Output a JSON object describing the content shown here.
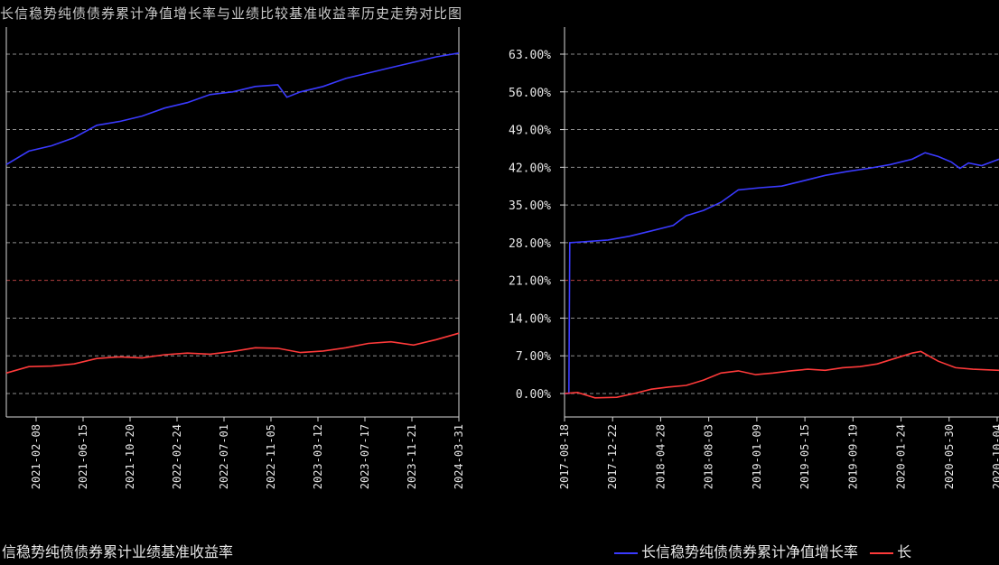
{
  "header": {
    "title_text": "长信稳势纯债债券累计净值增长率与业绩比较基准收益率历史走势对比图"
  },
  "colors": {
    "fund": "#3a3aff",
    "benchmark": "#ff3a3a",
    "grid": "#bdbdbd",
    "axis": "#d8d8d8",
    "bg": "#000000"
  },
  "legend": {
    "left_label": "信稳势纯债债券累计业绩基准收益率",
    "right_fund_label": "长信稳势纯债债券累计净值增长率",
    "right_bench_label": "长"
  },
  "chart_data": [
    {
      "type": "line",
      "panel": "left",
      "x_ticks": [
        "2021-02-08",
        "2021-06-15",
        "2021-10-20",
        "2022-02-24",
        "2022-07-01",
        "2022-11-05",
        "2023-03-12",
        "2023-07-17",
        "2023-11-21",
        "2024-03-31"
      ],
      "series": [
        {
          "name": "fund",
          "color": "#3a3aff",
          "points": [
            [
              0,
              42.5
            ],
            [
              0.05,
              45
            ],
            [
              0.1,
              46
            ],
            [
              0.15,
              47.5
            ],
            [
              0.2,
              49.8
            ],
            [
              0.25,
              50.5
            ],
            [
              0.3,
              51.5
            ],
            [
              0.35,
              53
            ],
            [
              0.4,
              54
            ],
            [
              0.45,
              55.5
            ],
            [
              0.5,
              56
            ],
            [
              0.55,
              57
            ],
            [
              0.6,
              57.3
            ],
            [
              0.62,
              55
            ],
            [
              0.65,
              56
            ],
            [
              0.7,
              57
            ],
            [
              0.75,
              58.5
            ],
            [
              0.8,
              59.5
            ],
            [
              0.85,
              60.5
            ],
            [
              0.9,
              61.5
            ],
            [
              0.95,
              62.5
            ],
            [
              1,
              63.2
            ]
          ]
        },
        {
          "name": "benchmark",
          "color": "#ff3a3a",
          "points": [
            [
              0,
              3.8
            ],
            [
              0.05,
              5
            ],
            [
              0.1,
              5.1
            ],
            [
              0.15,
              5.5
            ],
            [
              0.2,
              6.5
            ],
            [
              0.25,
              6.8
            ],
            [
              0.3,
              6.6
            ],
            [
              0.35,
              7.2
            ],
            [
              0.4,
              7.5
            ],
            [
              0.45,
              7.3
            ],
            [
              0.5,
              7.8
            ],
            [
              0.55,
              8.5
            ],
            [
              0.6,
              8.4
            ],
            [
              0.65,
              7.6
            ],
            [
              0.7,
              7.9
            ],
            [
              0.75,
              8.5
            ],
            [
              0.8,
              9.3
            ],
            [
              0.85,
              9.6
            ],
            [
              0.9,
              9.0
            ],
            [
              0.95,
              10
            ],
            [
              1,
              11.2
            ]
          ]
        }
      ]
    },
    {
      "type": "line",
      "panel": "right",
      "ylim": [
        0,
        63
      ],
      "y_ticks": [
        "63.00%",
        "56.00%",
        "49.00%",
        "42.00%",
        "35.00%",
        "28.00%",
        "21.00%",
        "14.00%",
        "7.00%",
        "0.00%"
      ],
      "x_ticks": [
        "2017-08-18",
        "2017-12-22",
        "2018-04-28",
        "2018-08-03",
        "2019-01-09",
        "2019-05-15",
        "2019-09-19",
        "2020-01-24",
        "2020-05-30",
        "2020-10-04"
      ],
      "series": [
        {
          "name": "长信稳势纯债债券累计净值增长率",
          "color": "#3a3aff",
          "points": [
            [
              0,
              0
            ],
            [
              0.01,
              0
            ],
            [
              0.012,
              28
            ],
            [
              0.05,
              28.2
            ],
            [
              0.1,
              28.5
            ],
            [
              0.15,
              29.2
            ],
            [
              0.2,
              30.2
            ],
            [
              0.25,
              31.2
            ],
            [
              0.28,
              33
            ],
            [
              0.32,
              34
            ],
            [
              0.36,
              35.5
            ],
            [
              0.4,
              37.8
            ],
            [
              0.45,
              38.2
            ],
            [
              0.5,
              38.5
            ],
            [
              0.55,
              39.5
            ],
            [
              0.6,
              40.5
            ],
            [
              0.65,
              41.2
            ],
            [
              0.7,
              41.8
            ],
            [
              0.75,
              42.5
            ],
            [
              0.8,
              43.5
            ],
            [
              0.83,
              44.7
            ],
            [
              0.86,
              44
            ],
            [
              0.89,
              43
            ],
            [
              0.91,
              41.8
            ],
            [
              0.93,
              42.8
            ],
            [
              0.96,
              42.3
            ],
            [
              1,
              43.5
            ]
          ]
        },
        {
          "name": "benchmark",
          "color": "#ff3a3a",
          "points": [
            [
              0,
              0
            ],
            [
              0.03,
              0.2
            ],
            [
              0.07,
              -0.8
            ],
            [
              0.12,
              -0.7
            ],
            [
              0.16,
              0
            ],
            [
              0.2,
              0.8
            ],
            [
              0.24,
              1.2
            ],
            [
              0.28,
              1.5
            ],
            [
              0.32,
              2.5
            ],
            [
              0.36,
              3.8
            ],
            [
              0.4,
              4.2
            ],
            [
              0.44,
              3.5
            ],
            [
              0.48,
              3.8
            ],
            [
              0.52,
              4.2
            ],
            [
              0.56,
              4.5
            ],
            [
              0.6,
              4.3
            ],
            [
              0.64,
              4.8
            ],
            [
              0.68,
              5
            ],
            [
              0.72,
              5.5
            ],
            [
              0.76,
              6.5
            ],
            [
              0.8,
              7.5
            ],
            [
              0.82,
              7.8
            ],
            [
              0.86,
              6
            ],
            [
              0.9,
              4.8
            ],
            [
              0.94,
              4.5
            ],
            [
              1,
              4.3
            ]
          ]
        }
      ]
    }
  ]
}
